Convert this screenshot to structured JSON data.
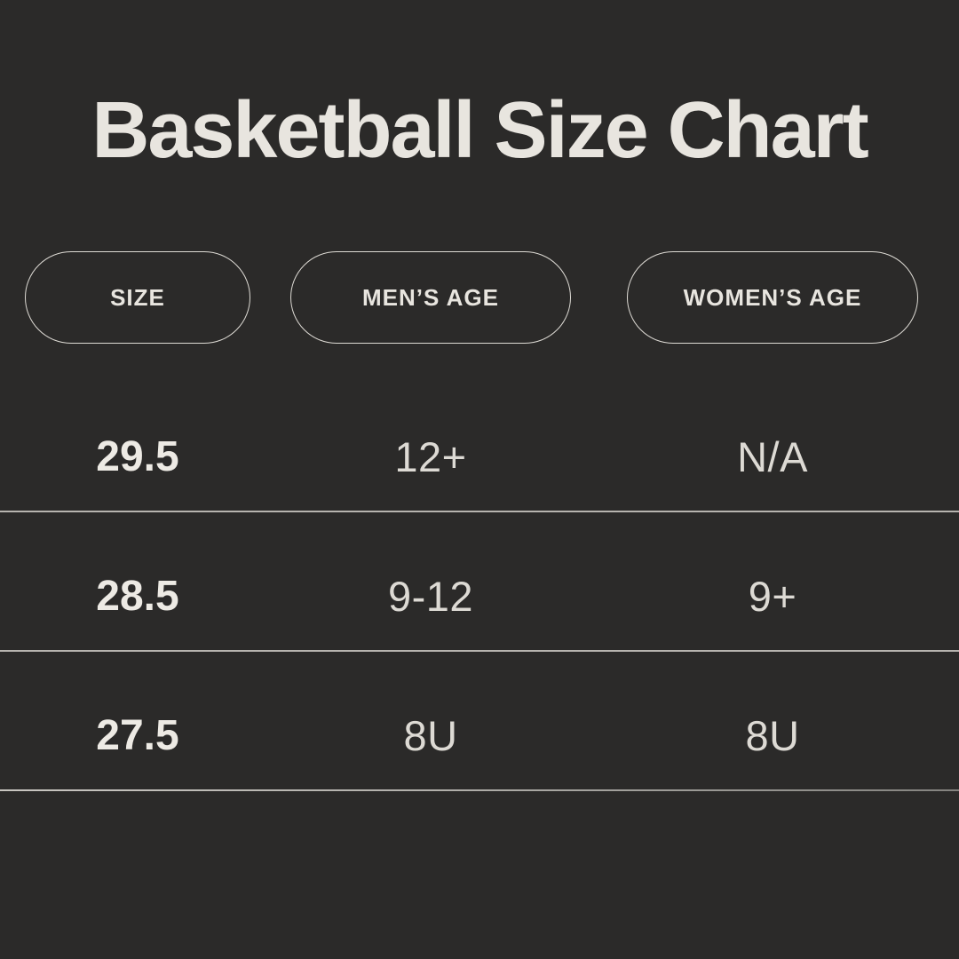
{
  "colors": {
    "background": "#2b2a29",
    "title_text": "#e8e5df",
    "pill_border": "#dedbd5",
    "value_text": "#dddad4",
    "size_value_text": "#edeae4",
    "divider_line": "#b7b4af"
  },
  "title": "Basketball Size Chart",
  "table": {
    "columns": [
      {
        "label": "SIZE"
      },
      {
        "label": "MEN’S AGE"
      },
      {
        "label": "WOMEN’S AGE"
      }
    ],
    "rows": [
      {
        "size": "29.5",
        "mens_age": "12+",
        "womens_age": "N/A"
      },
      {
        "size": "28.5",
        "mens_age": "9-12",
        "womens_age": "9+"
      },
      {
        "size": "27.5",
        "mens_age": "8U",
        "womens_age": "8U"
      }
    ]
  },
  "chart_data": {
    "type": "table",
    "title": "Basketball Size Chart",
    "columns": [
      "SIZE",
      "MEN’S AGE",
      "WOMEN’S AGE"
    ],
    "rows": [
      [
        "29.5",
        "12+",
        "N/A"
      ],
      [
        "28.5",
        "9-12",
        "9+"
      ],
      [
        "27.5",
        "8U",
        "8U"
      ]
    ],
    "layout": "dark background, pill-shaped column headers, horizontal divider under each row"
  }
}
